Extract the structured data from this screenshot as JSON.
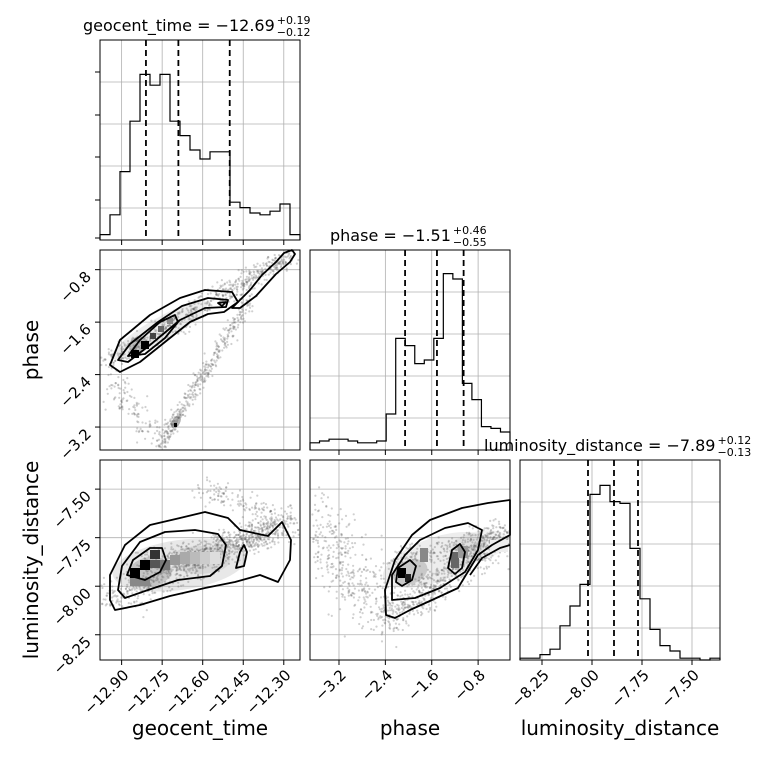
{
  "chart_data": {
    "type": "corner",
    "parameters": [
      "geocent_time",
      "phase",
      "luminosity_distance"
    ],
    "panels": {
      "geocent_time": {
        "title_main": "geocent_time = −12.69",
        "title_sup": "+0.19",
        "title_sub": "−0.12",
        "xlim": [
          -12.98,
          -12.24
        ],
        "ticks": [
          -12.9,
          -12.75,
          -12.6,
          -12.45,
          -12.3
        ],
        "tick_labels": [
          "−12.90",
          "−12.75",
          "−12.60",
          "−12.45",
          "−12.30"
        ],
        "quantile_lines": [
          -12.81,
          -12.69,
          -12.5
        ],
        "hist": [
          0.03,
          0.14,
          0.38,
          0.66,
          0.92,
          0.86,
          0.92,
          0.66,
          0.58,
          0.5,
          0.45,
          0.49,
          0.49,
          0.21,
          0.18,
          0.15,
          0.14,
          0.16,
          0.2,
          0.03
        ]
      },
      "phase": {
        "title_main": "phase = −1.51",
        "title_sup": "+0.46",
        "title_sub": "−0.55",
        "xlim": [
          -3.7,
          -0.25
        ],
        "ticks": [
          -3.2,
          -2.4,
          -1.6,
          -0.8
        ],
        "tick_labels": [
          "−3.2",
          "−2.4",
          "−1.6",
          "−0.8"
        ],
        "quantile_lines": [
          -2.06,
          -1.51,
          -1.05
        ],
        "hist": [
          0.04,
          0.05,
          0.06,
          0.06,
          0.05,
          0.04,
          0.04,
          0.05,
          0.2,
          0.62,
          0.58,
          0.48,
          0.5,
          0.62,
          0.98,
          0.95,
          0.37,
          0.28,
          0.13,
          0.12,
          0.1
        ]
      },
      "luminosity_distance": {
        "title_main": "luminosity_distance = −7.89",
        "title_sup": "+0.12",
        "title_sub": "−0.13",
        "xlim": [
          -8.36,
          -7.36
        ],
        "ticks": [
          -8.25,
          -8.0,
          -7.75,
          -7.5
        ],
        "tick_labels": [
          "−8.25",
          "−8.00",
          "−7.75",
          "−7.50"
        ],
        "quantile_lines": [
          -8.02,
          -7.89,
          -7.77
        ],
        "hist": [
          0.01,
          0.01,
          0.03,
          0.06,
          0.19,
          0.3,
          0.42,
          0.92,
          0.97,
          0.88,
          0.87,
          0.62,
          0.34,
          0.17,
          0.08,
          0.05,
          0.01,
          0.01,
          0.0,
          0.01
        ]
      }
    },
    "ylims": {
      "phase": [
        -3.55,
        -0.5
      ],
      "luminosity_distance": [
        -8.38,
        -7.35
      ]
    },
    "ytick_labels": {
      "phase": [
        "−0.8",
        "−1.6",
        "−2.4",
        "−3.2"
      ],
      "phase_values": [
        -0.8,
        -1.6,
        -2.4,
        -3.2
      ],
      "luminosity_distance": [
        "−7.50",
        "−7.75",
        "−8.00",
        "−8.25"
      ],
      "luminosity_distance_values": [
        -7.5,
        -7.75,
        -8.0,
        -8.25
      ]
    },
    "axis_labels": {
      "x": [
        "geocent_time",
        "phase",
        "luminosity_distance"
      ],
      "y": [
        "phase",
        "luminosity_distance"
      ]
    },
    "joint_modes": {
      "phase_vs_geocent_time": {
        "x": -12.83,
        "y": -1.95
      },
      "ld_vs_geocent_time": {
        "x": -12.82,
        "y": -7.93
      },
      "ld_vs_phase": {
        "x": -2.05,
        "y": -7.94
      }
    },
    "grid": true,
    "color": "#000000"
  }
}
